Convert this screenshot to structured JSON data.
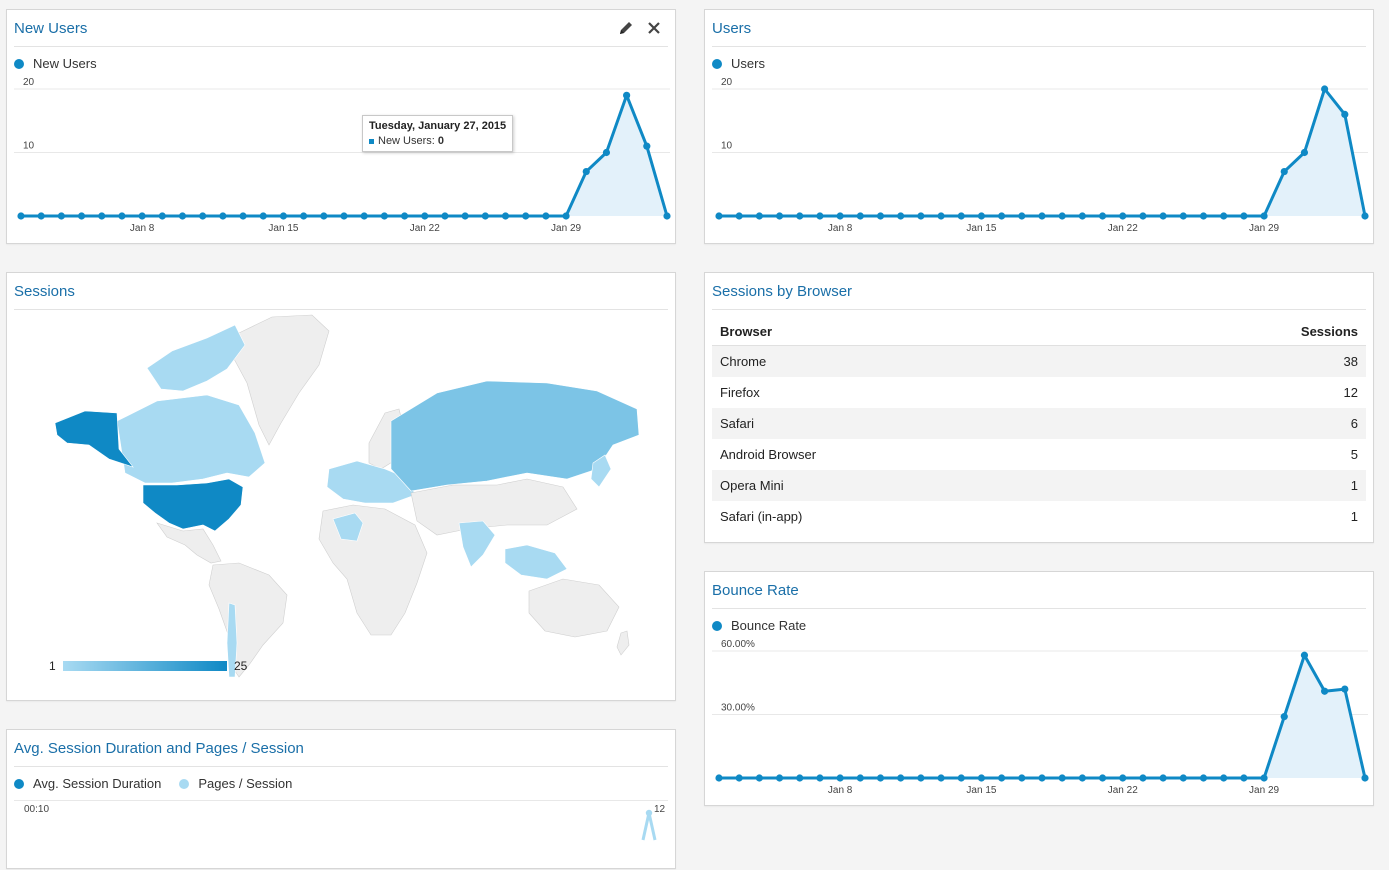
{
  "colors": {
    "accent": "#0f89c5",
    "area": "#e3f1fa",
    "light": "#a8daf2",
    "mid": "#7cc4e6",
    "dark": "#0f89c5",
    "land": "#eeeeee"
  },
  "widgets": {
    "new_users": {
      "title": "New Users",
      "legend": "New Users",
      "tooltip": {
        "date": "Tuesday, January 27, 2015",
        "label": "New Users:",
        "value": "0"
      }
    },
    "users": {
      "title": "Users",
      "legend": "Users"
    },
    "sessions_map": {
      "title": "Sessions",
      "scale_min": "1",
      "scale_max": "25"
    },
    "browser": {
      "title": "Sessions by Browser",
      "headers": [
        "Browser",
        "Sessions"
      ],
      "rows": [
        {
          "name": "Chrome",
          "value": "38"
        },
        {
          "name": "Firefox",
          "value": "12"
        },
        {
          "name": "Safari",
          "value": "6"
        },
        {
          "name": "Android Browser",
          "value": "5"
        },
        {
          "name": "Opera Mini",
          "value": "1"
        },
        {
          "name": "Safari (in-app)",
          "value": "1"
        }
      ]
    },
    "bounce": {
      "title": "Bounce Rate",
      "legend": "Bounce Rate"
    },
    "avg_session": {
      "title": "Avg. Session Duration and Pages / Session",
      "legend_a": "Avg. Session Duration",
      "legend_b": "Pages / Session",
      "y_left": "00:10",
      "y_right": "12"
    }
  },
  "chart_data": [
    {
      "id": "new_users",
      "type": "area",
      "x_ticks": [
        "Jan 8",
        "Jan 15",
        "Jan 22",
        "Jan 29"
      ],
      "y_ticks": [
        "10",
        "20"
      ],
      "ylim": [
        0,
        20
      ],
      "series": [
        {
          "name": "New Users",
          "values": [
            0,
            0,
            0,
            0,
            0,
            0,
            0,
            0,
            0,
            0,
            0,
            0,
            0,
            0,
            0,
            0,
            0,
            0,
            0,
            0,
            0,
            0,
            0,
            0,
            0,
            0,
            0,
            0,
            7,
            10,
            19,
            11,
            0
          ]
        }
      ]
    },
    {
      "id": "users",
      "type": "area",
      "x_ticks": [
        "Jan 8",
        "Jan 15",
        "Jan 22",
        "Jan 29"
      ],
      "y_ticks": [
        "10",
        "20"
      ],
      "ylim": [
        0,
        20
      ],
      "series": [
        {
          "name": "Users",
          "values": [
            0,
            0,
            0,
            0,
            0,
            0,
            0,
            0,
            0,
            0,
            0,
            0,
            0,
            0,
            0,
            0,
            0,
            0,
            0,
            0,
            0,
            0,
            0,
            0,
            0,
            0,
            0,
            0,
            7,
            10,
            20,
            16,
            0
          ]
        }
      ]
    },
    {
      "id": "bounce",
      "type": "area",
      "x_ticks": [
        "Jan 8",
        "Jan 15",
        "Jan 22",
        "Jan 29"
      ],
      "y_ticks": [
        "30.00%",
        "60.00%"
      ],
      "ylim": [
        0,
        60
      ],
      "series": [
        {
          "name": "Bounce Rate",
          "values": [
            0,
            0,
            0,
            0,
            0,
            0,
            0,
            0,
            0,
            0,
            0,
            0,
            0,
            0,
            0,
            0,
            0,
            0,
            0,
            0,
            0,
            0,
            0,
            0,
            0,
            0,
            0,
            0,
            29,
            58,
            41,
            42,
            0
          ]
        }
      ]
    }
  ]
}
